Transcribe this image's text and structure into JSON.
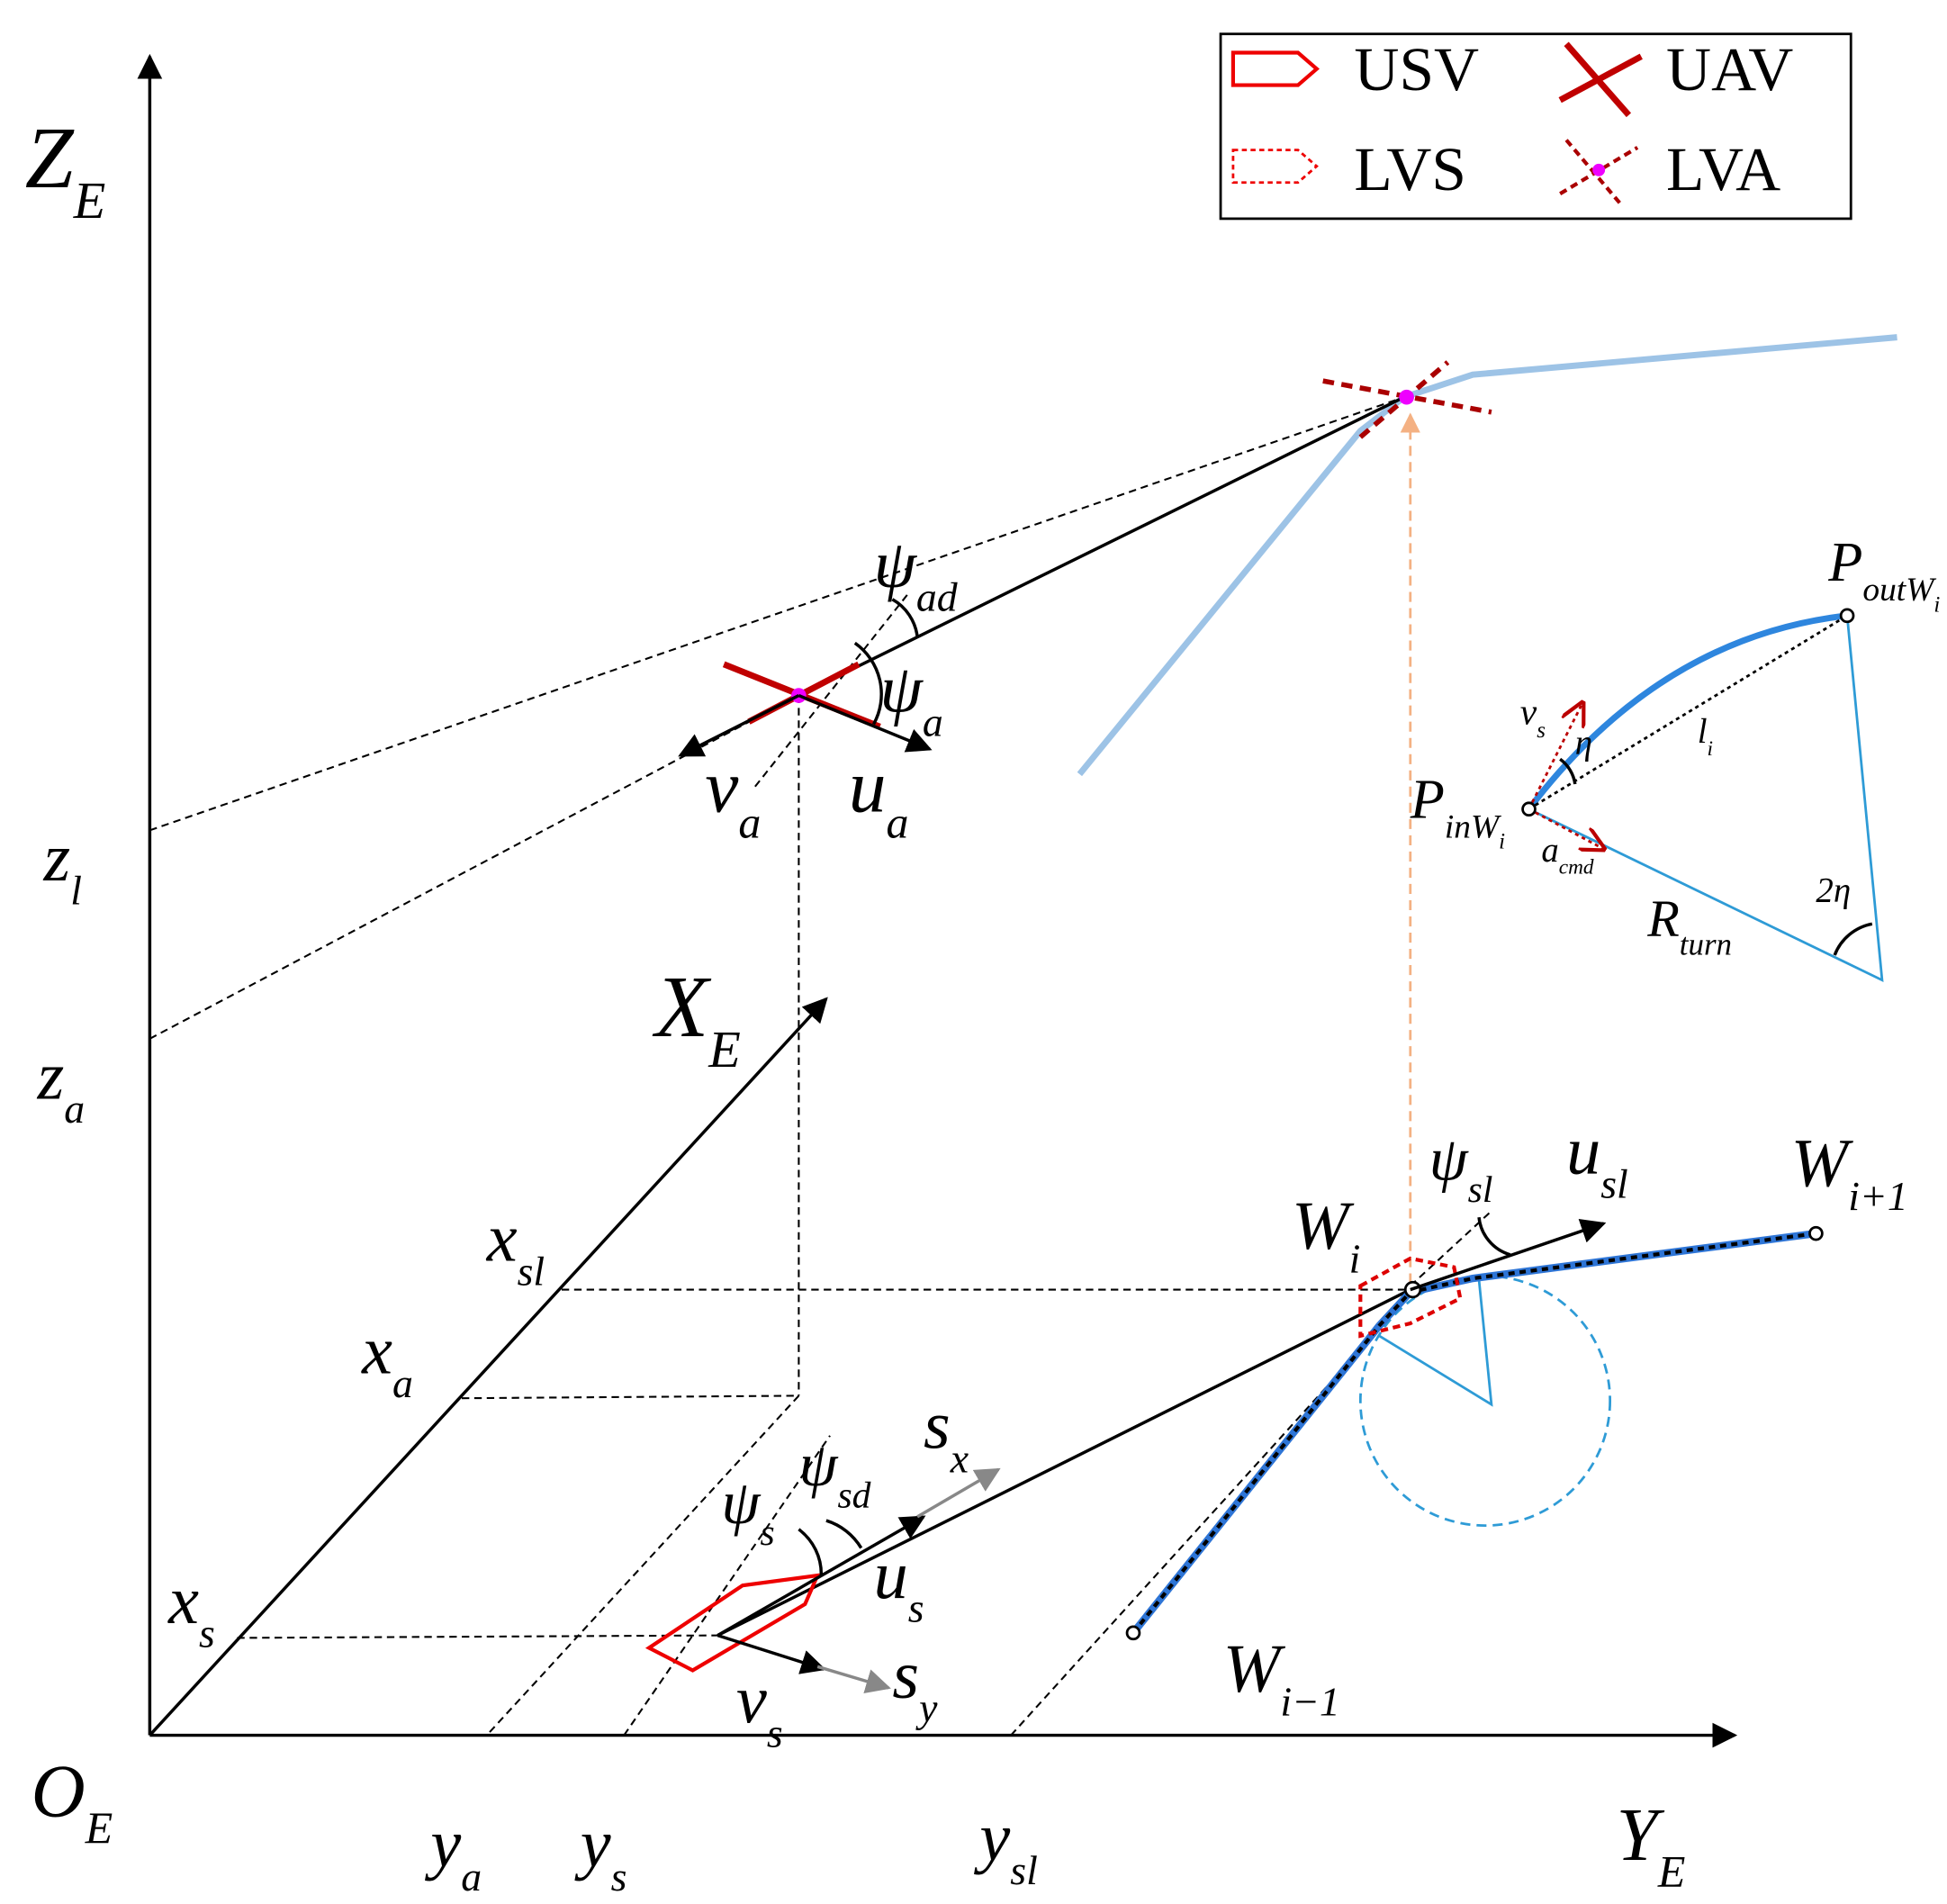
{
  "legend": {
    "usv": "USV",
    "uav": "UAV",
    "lvs": "LVS",
    "lva": "LVA"
  },
  "labels": {
    "ZE": {
      "base": "Z",
      "sub": "E"
    },
    "zl": {
      "base": "z",
      "sub": "l"
    },
    "za": {
      "base": "z",
      "sub": "a"
    },
    "XE": {
      "base": "X",
      "sub": "E"
    },
    "xsl": {
      "base": "x",
      "sub": "sl"
    },
    "xa": {
      "base": "x",
      "sub": "a"
    },
    "xs": {
      "base": "x",
      "sub": "s"
    },
    "OE": {
      "base": "O",
      "sub": "E"
    },
    "ya": {
      "base": "y",
      "sub": "a"
    },
    "ys": {
      "base": "y",
      "sub": "s"
    },
    "ysl": {
      "base": "y",
      "sub": "sl"
    },
    "YE": {
      "base": "Y",
      "sub": "E"
    },
    "psiad": {
      "base": "ψ",
      "sub": "ad"
    },
    "psia": {
      "base": "ψ",
      "sub": "a"
    },
    "va": {
      "base": "v",
      "sub": "a"
    },
    "ua": {
      "base": "u",
      "sub": "a"
    },
    "psisl": {
      "base": "ψ",
      "sub": "sl"
    },
    "usl": {
      "base": "u",
      "sub": "sl"
    },
    "Wi": {
      "base": "W",
      "sub": "i"
    },
    "Wip1": {
      "base": "W",
      "sub": "i+1"
    },
    "Wim1": {
      "base": "W",
      "sub": "i−1"
    },
    "psis": {
      "base": "ψ",
      "sub": "s"
    },
    "psisd": {
      "base": "ψ",
      "sub": "sd"
    },
    "sx": {
      "base": "s",
      "sub": "x"
    },
    "us": {
      "base": "u",
      "sub": "s"
    },
    "sy": {
      "base": "s",
      "sub": "y"
    },
    "vs": {
      "base": "v",
      "sub": "s"
    },
    "Pout": {
      "base": "P",
      "sub": "outW",
      "subsub": "i"
    },
    "Pin": {
      "base": "P",
      "sub": "inW",
      "subsub": "i"
    },
    "vsSmall": {
      "base": "v",
      "sub": "s"
    },
    "eta": {
      "base": "η"
    },
    "li": {
      "base": "l",
      "sub": "i"
    },
    "acmd": {
      "base": "a",
      "sub": "cmd"
    },
    "twoEta": {
      "base": "2η"
    },
    "Rturn": {
      "base": "R",
      "sub": "turn"
    }
  }
}
